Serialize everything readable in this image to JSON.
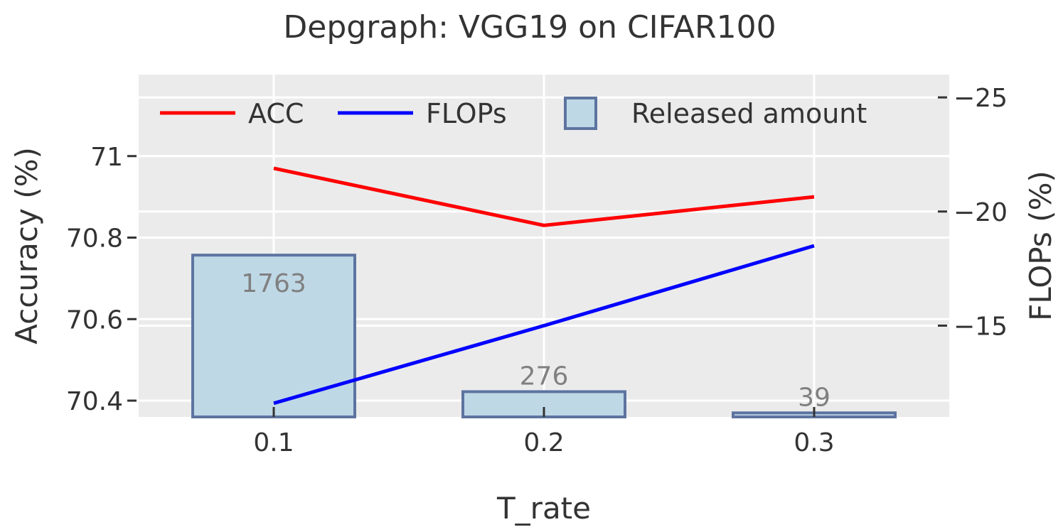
{
  "chart_data": {
    "type": "bar+line",
    "title": "Depgraph: VGG19 on CIFAR100",
    "xlabel": "T_rate",
    "ylabel_left": "Accuracy (%)",
    "ylabel_right": "FLOPs (%)",
    "categories": [
      "0.1",
      "0.2",
      "0.3"
    ],
    "x": [
      0.1,
      0.2,
      0.3
    ],
    "xlim": [
      0.05,
      0.35
    ],
    "ylim_left": [
      70.36,
      71.2
    ],
    "ylim_right": [
      11.0,
      26.0
    ],
    "left_ticks": [
      70.4,
      70.6,
      70.8,
      71.0
    ],
    "left_tick_labels": [
      "70.4",
      "70.6",
      "70.8",
      "71"
    ],
    "right_ticks": [
      15,
      20,
      25
    ],
    "right_tick_labels": [
      "15",
      "20",
      "25"
    ],
    "legend_position": "top",
    "grid": true,
    "bars": {
      "name": "Released amount",
      "values": [
        1763,
        276,
        39
      ],
      "labels": [
        "1763",
        "276",
        "39"
      ],
      "left_axis_tops": [
        70.757,
        70.422,
        70.37
      ],
      "fill": "#bfd8e6",
      "stroke": "#5d74a0"
    },
    "series": [
      {
        "name": "ACC",
        "axis": "left",
        "values": [
          70.97,
          70.83,
          70.9
        ],
        "color": "#ff0000"
      },
      {
        "name": "FLOPs",
        "axis": "right",
        "values": [
          11.6,
          15.0,
          18.5
        ],
        "color": "#0000ff"
      }
    ],
    "colors": {
      "plot_background": "#ebebeb",
      "grid": "#ffffff",
      "text": "#333333",
      "bar_label": "#808080"
    }
  }
}
